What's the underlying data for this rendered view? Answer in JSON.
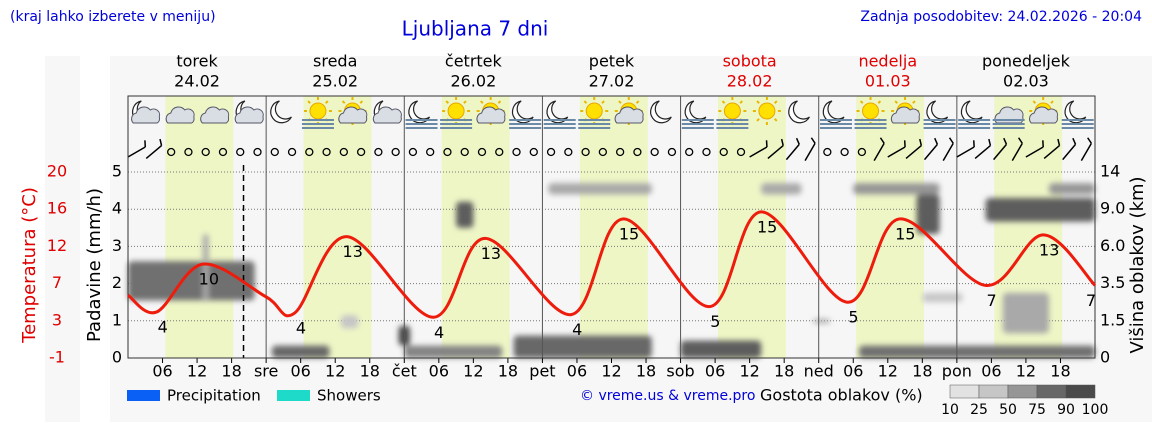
{
  "chart_data": {
    "type": "line",
    "title": "Ljubljana 7 dni",
    "note": "(kraj lahko izberete v meniju)",
    "updated": "Zadnja posodobitev: 24.02.2026 - 20:04",
    "days": [
      {
        "name": "torek",
        "date": "24.02",
        "color": "#000000"
      },
      {
        "name": "sreda",
        "date": "25.02",
        "color": "#000000"
      },
      {
        "name": "četrtek",
        "date": "26.02",
        "color": "#000000"
      },
      {
        "name": "petek",
        "date": "27.02",
        "color": "#000000"
      },
      {
        "name": "sobota",
        "date": "28.02",
        "color": "#e00000"
      },
      {
        "name": "nedelja",
        "date": "01.03",
        "color": "#e00000"
      },
      {
        "name": "ponedeljek",
        "date": "02.03",
        "color": "#000000"
      }
    ],
    "xlim": [
      0,
      168
    ],
    "xticks": [
      {
        "value": 6,
        "label": "06"
      },
      {
        "value": 12,
        "label": "12"
      },
      {
        "value": 18,
        "label": "18"
      },
      {
        "value": 24,
        "label": "sre"
      },
      {
        "value": 30,
        "label": "06"
      },
      {
        "value": 36,
        "label": "12"
      },
      {
        "value": 42,
        "label": "18"
      },
      {
        "value": 48,
        "label": "čet"
      },
      {
        "value": 54,
        "label": "06"
      },
      {
        "value": 60,
        "label": "12"
      },
      {
        "value": 66,
        "label": "18"
      },
      {
        "value": 72,
        "label": "pet"
      },
      {
        "value": 78,
        "label": "06"
      },
      {
        "value": 84,
        "label": "12"
      },
      {
        "value": 90,
        "label": "18"
      },
      {
        "value": 96,
        "label": "sob"
      },
      {
        "value": 102,
        "label": "06"
      },
      {
        "value": 108,
        "label": "12"
      },
      {
        "value": 114,
        "label": "18"
      },
      {
        "value": 120,
        "label": "ned"
      },
      {
        "value": 126,
        "label": "06"
      },
      {
        "value": 132,
        "label": "12"
      },
      {
        "value": 138,
        "label": "18"
      },
      {
        "value": 144,
        "label": "pon"
      },
      {
        "value": 150,
        "label": "06"
      },
      {
        "value": 156,
        "label": "12"
      },
      {
        "value": 162,
        "label": "18"
      }
    ],
    "ylabel": "Padavine (mm/h)",
    "ylim": [
      0,
      5
    ],
    "yticks": [
      0,
      1,
      2,
      3,
      4,
      5
    ],
    "grid": true,
    "temperature_label": "Temperatura (°C)",
    "temperature_lim": [
      -1,
      20
    ],
    "temperature_ticks": [
      -1,
      {
        "value": 3.2,
        "label": "3"
      },
      {
        "value": 7.4,
        "label": "7"
      },
      {
        "value": 11.6,
        "label": "12"
      },
      {
        "value": 15.8,
        "label": "16"
      },
      20
    ],
    "temperature_color": "#e00000",
    "y2label": "Višina oblakov (km)",
    "y2scale": "piecewise",
    "y2lim": [
      0,
      14
    ],
    "y2ticks": [
      0,
      1.5,
      3.5,
      {
        "value": 6,
        "label": "6.0"
      },
      {
        "value": 9,
        "label": "9.0"
      },
      14
    ],
    "temperature": {
      "color": "#ee1c0c",
      "x": [
        0,
        5,
        13,
        24,
        29,
        38,
        53,
        62,
        77,
        86,
        101,
        110,
        125,
        134,
        149,
        159,
        168
      ],
      "values": [
        6.1,
        4.2,
        9.6,
        5.9,
        4.1,
        12.7,
        3.6,
        12.5,
        3.9,
        14.7,
        4.8,
        15.5,
        5.3,
        14.7,
        7.2,
        12.9,
        7.2
      ],
      "value_labels": [
        null,
        "4",
        "10",
        null,
        "4",
        "13",
        "4",
        "13",
        "4",
        "15",
        "5",
        "15",
        "5",
        "15",
        "7",
        "13",
        "7"
      ]
    },
    "legend": [
      {
        "name": "Precipitation",
        "color": "#0a5ff5"
      },
      {
        "name": "Showers",
        "color": "#1ddbc8"
      }
    ],
    "clouds": {
      "title": "Gostota oblakov (%)",
      "levels": [
        10,
        25,
        50,
        75,
        90,
        100
      ],
      "layers": [
        {
          "x": [
            0,
            22
          ],
          "height": [
            2.6,
            5.0
          ],
          "density": 70
        },
        {
          "x": [
            13,
            14
          ],
          "height": [
            2.5,
            7.0
          ],
          "density": 40
        },
        {
          "x": [
            25,
            35
          ],
          "height": [
            0,
            0.5
          ],
          "density": 75
        },
        {
          "x": [
            37,
            40
          ],
          "height": [
            1.2,
            1.8
          ],
          "density": 25
        },
        {
          "x": [
            47,
            49
          ],
          "height": [
            0.5,
            1.3
          ],
          "density": 90
        },
        {
          "x": [
            48,
            65
          ],
          "height": [
            0,
            0.5
          ],
          "density": 60
        },
        {
          "x": [
            57,
            60
          ],
          "height": [
            7.5,
            10
          ],
          "density": 80
        },
        {
          "x": [
            67,
            91
          ],
          "height": [
            0,
            0.9
          ],
          "density": 75
        },
        {
          "x": [
            73,
            91
          ],
          "height": [
            11,
            12.5
          ],
          "density": 40
        },
        {
          "x": [
            96,
            110
          ],
          "height": [
            0,
            0.7
          ],
          "density": 80
        },
        {
          "x": [
            110,
            117
          ],
          "height": [
            11,
            12.5
          ],
          "density": 40
        },
        {
          "x": [
            119,
            122
          ],
          "height": [
            1.4,
            1.6
          ],
          "density": 40
        },
        {
          "x": [
            126,
            141
          ],
          "height": [
            11,
            12.5
          ],
          "density": 50
        },
        {
          "x": [
            137,
            141
          ],
          "height": [
            7,
            11
          ],
          "density": 80
        },
        {
          "x": [
            127,
            168
          ],
          "height": [
            0,
            0.5
          ],
          "density": 70
        },
        {
          "x": [
            138,
            145
          ],
          "height": [
            2.5,
            3.0
          ],
          "density": 25
        },
        {
          "x": [
            149,
            168
          ],
          "height": [
            8,
            10.5
          ],
          "density": 80
        },
        {
          "x": [
            152,
            160
          ],
          "height": [
            1.0,
            3.0
          ],
          "density": 40
        },
        {
          "x": [
            160,
            168
          ],
          "height": [
            11,
            12.5
          ],
          "density": 50
        }
      ]
    },
    "daylight": [
      6.5,
      18.3
    ],
    "now": 20.07,
    "credit": "© vreme.us & vreme.pro"
  }
}
